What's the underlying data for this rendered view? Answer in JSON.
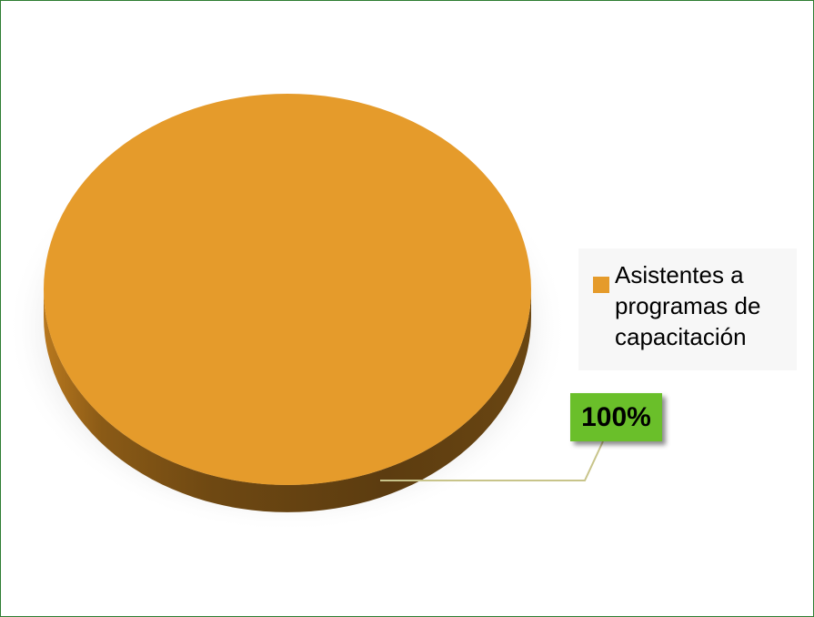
{
  "chart_data": {
    "type": "pie",
    "style": "3d",
    "categories": [
      "Asistentes a programas de capacitación"
    ],
    "values": [
      100
    ],
    "data_labels": [
      "100%"
    ],
    "colors": {
      "slice": "#E59B2B",
      "slice_side_dark": "#5c3c10",
      "label_bg": "#6ABF2A",
      "frame_border": "#2E7D32",
      "leader_line": "#C8C48A"
    },
    "legend": {
      "position": "right",
      "entries": [
        "Asistentes a programas de capacitación"
      ]
    }
  }
}
